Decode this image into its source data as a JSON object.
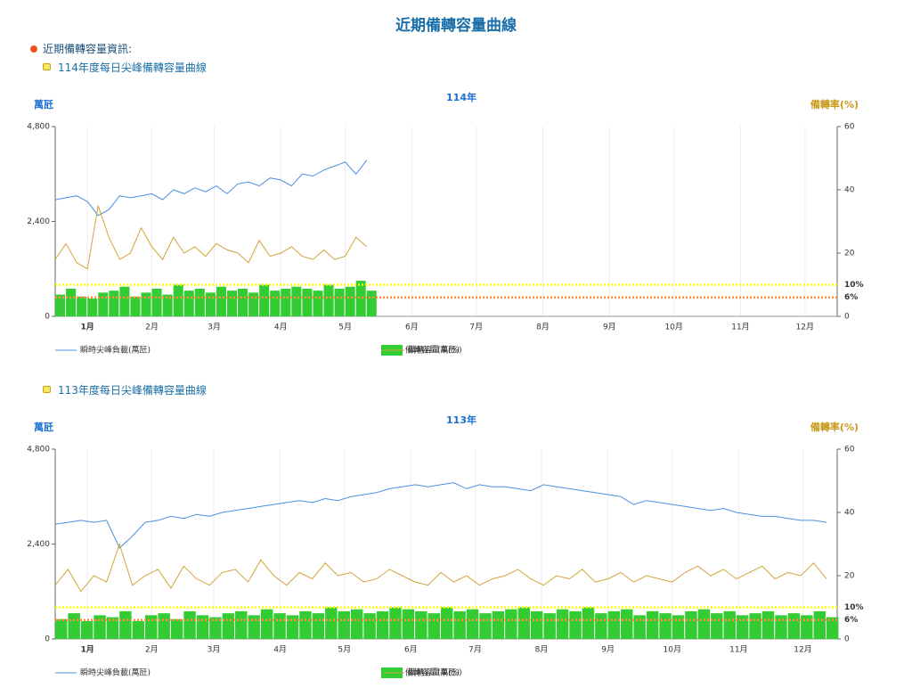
{
  "header": {
    "title": "近期備轉容量曲線",
    "info": "近期備轉容量資訊:"
  },
  "sections": [
    "114年度每日尖峰備轉容量曲線",
    "113年度每日尖峰備轉容量曲線"
  ],
  "chart_data": [
    {
      "type": "combo",
      "title": "114年",
      "ylabel": "萬瓩",
      "y2label": "備轉率(%)",
      "xlim": [
        1,
        365
      ],
      "xticks": [
        {
          "value": 16,
          "label": "1月"
        },
        {
          "value": 46,
          "label": "2月"
        },
        {
          "value": 75,
          "label": "3月"
        },
        {
          "value": 106,
          "label": "4月"
        },
        {
          "value": 136,
          "label": "5月"
        },
        {
          "value": 167,
          "label": "6月"
        },
        {
          "value": 197,
          "label": "7月"
        },
        {
          "value": 228,
          "label": "8月"
        },
        {
          "value": 259,
          "label": "9月"
        },
        {
          "value": 289,
          "label": "10月"
        },
        {
          "value": 320,
          "label": "11月"
        },
        {
          "value": 350,
          "label": "12月"
        }
      ],
      "ylim": [
        0,
        4800
      ],
      "yticks": [
        0,
        {
          "value": 2400,
          "label": "2,400"
        },
        {
          "value": 4800,
          "label": "4,800"
        }
      ],
      "y2lim": [
        0,
        60
      ],
      "y2ticks": [
        0,
        20,
        40,
        60
      ],
      "reference_lines": [
        {
          "value": 10,
          "label": "10%",
          "color": "#ffff00"
        },
        {
          "value": 6,
          "label": "6%",
          "color": "#ff8c3a"
        }
      ],
      "x": [
        1,
        6,
        11,
        16,
        21,
        26,
        31,
        36,
        41,
        46,
        51,
        56,
        61,
        66,
        71,
        76,
        81,
        86,
        91,
        96,
        101,
        106,
        111,
        116,
        121,
        126,
        131,
        136,
        141,
        146
      ],
      "series": [
        {
          "name": "瞬時尖峰負載(萬瓩)",
          "color": "#4a90e2",
          "type": "line",
          "values": [
            2950,
            3000,
            3050,
            2900,
            2550,
            2700,
            3050,
            3000,
            3050,
            3100,
            2950,
            3200,
            3100,
            3250,
            3150,
            3300,
            3100,
            3350,
            3400,
            3300,
            3500,
            3450,
            3300,
            3600,
            3550,
            3700,
            3800,
            3900,
            3600,
            3950
          ]
        },
        {
          "name": "備轉容量(萬瓩)",
          "color": "#33cc33",
          "type": "bar",
          "values": [
            550,
            700,
            500,
            450,
            600,
            650,
            750,
            500,
            600,
            700,
            550,
            800,
            650,
            700,
            600,
            750,
            650,
            700,
            600,
            800,
            650,
            700,
            750,
            700,
            650,
            800,
            700,
            750,
            900,
            650
          ]
        },
        {
          "name": "備轉容量率(%)",
          "color": "#d4a33a",
          "type": "line",
          "axis": "y2",
          "values": [
            18,
            23,
            17,
            15,
            35,
            25,
            18,
            20,
            28,
            22,
            18,
            25,
            20,
            22,
            19,
            23,
            21,
            20,
            17,
            24,
            19,
            20,
            22,
            19,
            18,
            21,
            18,
            19,
            25,
            22
          ]
        }
      ]
    },
    {
      "type": "combo",
      "title": "113年",
      "ylabel": "萬瓩",
      "y2label": "備轉率(%)",
      "xlim": [
        1,
        366
      ],
      "xticks": [
        {
          "value": 16,
          "label": "1月"
        },
        {
          "value": 46,
          "label": "2月"
        },
        {
          "value": 75,
          "label": "3月"
        },
        {
          "value": 106,
          "label": "4月"
        },
        {
          "value": 136,
          "label": "5月"
        },
        {
          "value": 167,
          "label": "6月"
        },
        {
          "value": 197,
          "label": "7月"
        },
        {
          "value": 228,
          "label": "8月"
        },
        {
          "value": 259,
          "label": "9月"
        },
        {
          "value": 289,
          "label": "10月"
        },
        {
          "value": 320,
          "label": "11月"
        },
        {
          "value": 350,
          "label": "12月"
        }
      ],
      "ylim": [
        0,
        4800
      ],
      "yticks": [
        0,
        {
          "value": 2400,
          "label": "2,400"
        },
        {
          "value": 4800,
          "label": "4,800"
        }
      ],
      "y2lim": [
        0,
        60
      ],
      "y2ticks": [
        0,
        20,
        40,
        60
      ],
      "reference_lines": [
        {
          "value": 10,
          "label": "10%",
          "color": "#ffff00"
        },
        {
          "value": 6,
          "label": "6%",
          "color": "#ff8c3a"
        }
      ],
      "x": [
        1,
        7,
        13,
        19,
        25,
        31,
        37,
        43,
        49,
        55,
        61,
        67,
        73,
        79,
        85,
        91,
        97,
        103,
        109,
        115,
        121,
        127,
        133,
        139,
        145,
        151,
        157,
        163,
        169,
        175,
        181,
        187,
        193,
        199,
        205,
        211,
        217,
        223,
        229,
        235,
        241,
        247,
        253,
        259,
        265,
        271,
        277,
        283,
        289,
        295,
        301,
        307,
        313,
        319,
        325,
        331,
        337,
        343,
        349,
        355,
        361
      ],
      "series": [
        {
          "name": "瞬時尖峰負載(萬瓩)",
          "color": "#4a90e2",
          "type": "line",
          "values": [
            2900,
            2950,
            3000,
            2950,
            3000,
            2300,
            2600,
            2950,
            3000,
            3100,
            3050,
            3150,
            3100,
            3200,
            3250,
            3300,
            3350,
            3400,
            3450,
            3500,
            3450,
            3550,
            3500,
            3600,
            3650,
            3700,
            3800,
            3850,
            3900,
            3850,
            3900,
            3950,
            3800,
            3900,
            3850,
            3850,
            3800,
            3750,
            3900,
            3850,
            3800,
            3750,
            3700,
            3650,
            3600,
            3400,
            3500,
            3450,
            3400,
            3350,
            3300,
            3250,
            3300,
            3200,
            3150,
            3100,
            3100,
            3050,
            3000,
            3000,
            2950
          ]
        },
        {
          "name": "備轉容量(萬瓩)",
          "color": "#33cc33",
          "type": "bar",
          "values": [
            500,
            650,
            450,
            600,
            550,
            700,
            450,
            600,
            650,
            500,
            700,
            600,
            550,
            650,
            700,
            600,
            750,
            650,
            600,
            700,
            650,
            800,
            700,
            750,
            650,
            700,
            800,
            750,
            700,
            650,
            800,
            700,
            750,
            650,
            700,
            750,
            800,
            700,
            650,
            750,
            700,
            800,
            650,
            700,
            750,
            600,
            700,
            650,
            600,
            700,
            750,
            650,
            700,
            600,
            650,
            700,
            600,
            650,
            600,
            700,
            550
          ]
        },
        {
          "name": "備轉容量率(%)",
          "color": "#d4a33a",
          "type": "line",
          "axis": "y2",
          "values": [
            17,
            22,
            15,
            20,
            18,
            30,
            17,
            20,
            22,
            16,
            23,
            19,
            17,
            21,
            22,
            18,
            25,
            20,
            17,
            21,
            19,
            24,
            20,
            21,
            18,
            19,
            22,
            20,
            18,
            17,
            21,
            18,
            20,
            17,
            19,
            20,
            22,
            19,
            17,
            20,
            19,
            22,
            18,
            19,
            21,
            18,
            20,
            19,
            18,
            21,
            23,
            20,
            22,
            19,
            21,
            23,
            19,
            21,
            20,
            24,
            19
          ]
        }
      ]
    }
  ]
}
